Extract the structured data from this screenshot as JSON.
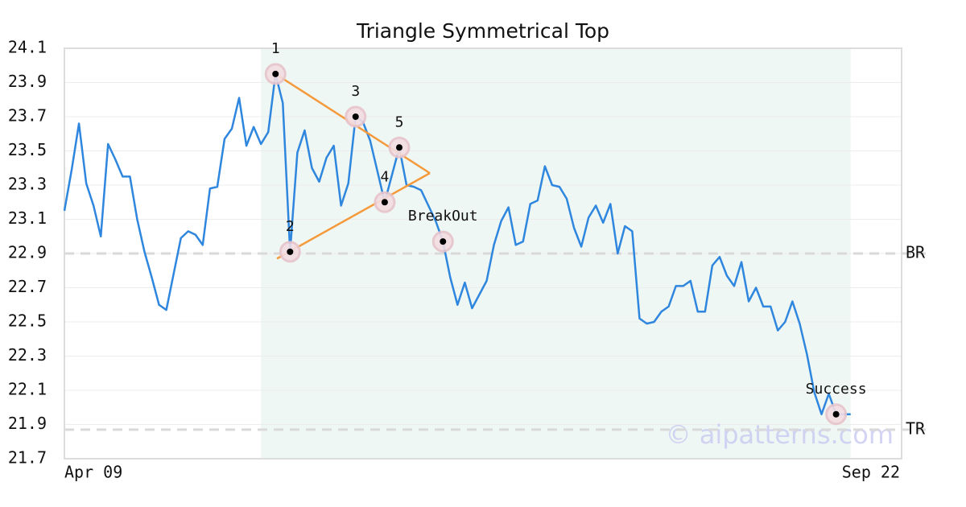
{
  "chart_data": {
    "type": "line",
    "title": "Triangle Symmetrical Top",
    "watermark": "© aipatterns.com",
    "xlim": [
      0,
      115
    ],
    "xticks": [
      {
        "value": 0,
        "label": "Apr 09"
      },
      {
        "value": 115,
        "label": "Sep 22"
      }
    ],
    "ylim": [
      21.7,
      24.1
    ],
    "yticks": [
      21.7,
      21.9,
      22.1,
      22.3,
      22.5,
      22.7,
      22.9,
      23.1,
      23.3,
      23.5,
      23.7,
      23.9,
      24.1
    ],
    "grid": true,
    "highlight_range": [
      27,
      108
    ],
    "highlight_color": "#eef7f3",
    "series": [
      {
        "color": "#2e86de",
        "values": [
          23.15,
          23.39,
          23.66,
          23.31,
          23.18,
          23.0,
          23.54,
          23.45,
          23.35,
          23.35,
          23.1,
          22.91,
          22.76,
          22.6,
          22.57,
          22.78,
          22.99,
          23.03,
          23.01,
          22.95,
          23.28,
          23.29,
          23.57,
          23.63,
          23.81,
          23.53,
          23.64,
          23.54,
          23.61,
          23.95,
          23.78,
          22.91,
          23.49,
          23.62,
          23.4,
          23.32,
          23.46,
          23.53,
          23.18,
          23.31,
          23.7,
          23.67,
          23.56,
          23.38,
          23.2,
          23.36,
          23.52,
          23.3,
          23.29,
          23.27,
          23.18,
          23.09,
          22.97,
          22.76,
          22.6,
          22.73,
          22.58,
          22.66,
          22.74,
          22.95,
          23.09,
          23.17,
          22.95,
          22.97,
          23.19,
          23.21,
          23.41,
          23.3,
          23.29,
          23.22,
          23.05,
          22.94,
          23.11,
          23.18,
          23.08,
          23.19,
          22.9,
          23.06,
          23.03,
          22.52,
          22.49,
          22.5,
          22.56,
          22.59,
          22.71,
          22.71,
          22.74,
          22.56,
          22.56,
          22.83,
          22.88,
          22.77,
          22.71,
          22.85,
          22.62,
          22.7,
          22.59,
          22.59,
          22.45,
          22.5,
          22.62,
          22.49,
          22.31,
          22.09,
          21.96,
          22.08,
          21.96,
          21.96,
          21.96
        ]
      }
    ],
    "triangle": {
      "color": "#f59a3c",
      "upper": {
        "x": [
          29,
          50.2
        ],
        "y": [
          23.95,
          23.37
        ]
      },
      "lower": {
        "x": [
          29.2,
          50.2
        ],
        "y": [
          22.87,
          23.37
        ]
      }
    },
    "points": [
      {
        "label": "1",
        "x": 29,
        "y": 23.95
      },
      {
        "label": "2",
        "x": 31,
        "y": 22.91
      },
      {
        "label": "3",
        "x": 40,
        "y": 23.7
      },
      {
        "label": "4",
        "x": 44,
        "y": 23.2
      },
      {
        "label": "5",
        "x": 46,
        "y": 23.52
      },
      {
        "label": "BreakOut",
        "x": 52,
        "y": 22.97
      },
      {
        "label": "Success",
        "x": 106,
        "y": 21.96
      }
    ],
    "levels": [
      {
        "label": "BR",
        "value": 22.9
      },
      {
        "label": "TR",
        "value": 21.87
      }
    ]
  }
}
